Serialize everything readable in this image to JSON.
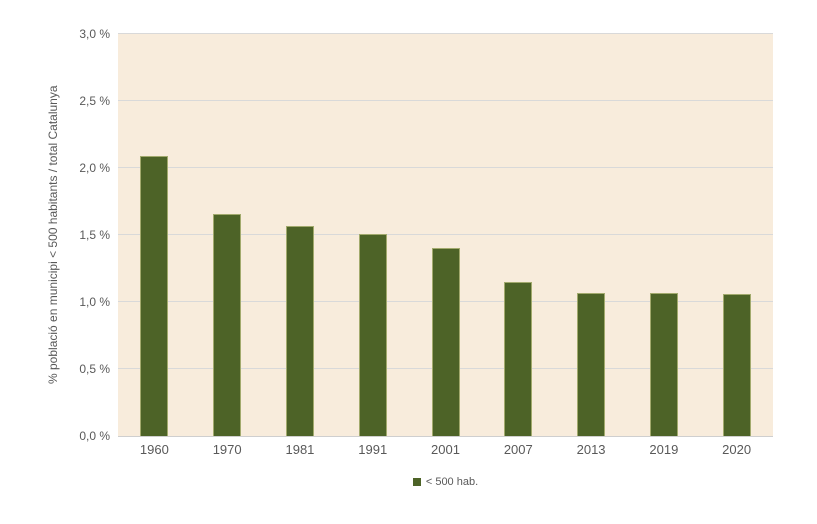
{
  "chart_data": {
    "type": "bar",
    "categories": [
      "1960",
      "1970",
      "1981",
      "1991",
      "2001",
      "2007",
      "2013",
      "2019",
      "2020"
    ],
    "values": [
      2.09,
      1.66,
      1.57,
      1.51,
      1.4,
      1.15,
      1.07,
      1.07,
      1.06
    ],
    "series_name": "< 500 hab.",
    "title": "",
    "xlabel": "",
    "ylabel": "% població en municipi < 500 habitants / total Catalunya",
    "ylim": [
      0,
      3
    ],
    "ytick_step": 0.5,
    "ytick_labels": [
      "0,0 %",
      "0,5 %",
      "1,0 %",
      "1,5 %",
      "2,0 %",
      "2,5 %",
      "3,0 %"
    ],
    "grid": true,
    "legend_position": "bottom-center",
    "legend_label": "< 500 hab."
  },
  "colors": {
    "bar_fill": "#4d6327",
    "bar_border": "#a2aa6d",
    "plot_background": "#f8ecdc",
    "gridline": "#d9d9d9",
    "axis_line": "#cfcfcf",
    "text": "#595959",
    "page_background": "#ffffff"
  }
}
